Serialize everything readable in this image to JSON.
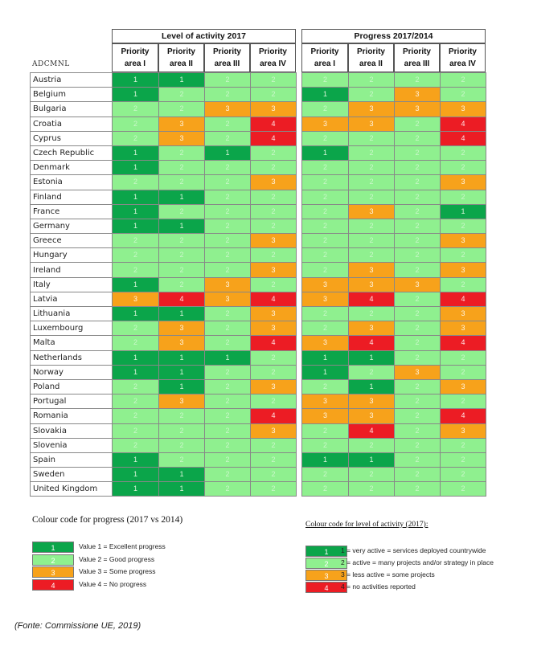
{
  "header": {
    "group_activity": "Level of activity 2017",
    "group_progress": "Progress 2017/2014",
    "country_col": "ADCMNL",
    "columns": [
      [
        "Priority",
        "area I"
      ],
      [
        "Priority",
        "area II"
      ],
      [
        "Priority",
        "area III"
      ],
      [
        "Priority",
        "area IV"
      ]
    ]
  },
  "rows": [
    {
      "country": "Austria",
      "activity": [
        1,
        1,
        2,
        2
      ],
      "progress": [
        2,
        2,
        2,
        2
      ]
    },
    {
      "country": "Belgium",
      "activity": [
        1,
        2,
        2,
        2
      ],
      "progress": [
        1,
        2,
        3,
        2
      ]
    },
    {
      "country": "Bulgaria",
      "activity": [
        2,
        2,
        3,
        3
      ],
      "progress": [
        2,
        3,
        3,
        3
      ]
    },
    {
      "country": "Croatia",
      "activity": [
        2,
        3,
        2,
        4
      ],
      "progress": [
        3,
        3,
        2,
        4
      ]
    },
    {
      "country": "Cyprus",
      "activity": [
        2,
        3,
        2,
        4
      ],
      "progress": [
        2,
        2,
        2,
        4
      ]
    },
    {
      "country": "Czech Republic",
      "activity": [
        1,
        2,
        1,
        2
      ],
      "progress": [
        1,
        2,
        2,
        2
      ]
    },
    {
      "country": "Denmark",
      "activity": [
        1,
        2,
        2,
        2
      ],
      "progress": [
        2,
        2,
        2,
        2
      ]
    },
    {
      "country": "Estonia",
      "activity": [
        2,
        2,
        2,
        3
      ],
      "progress": [
        2,
        2,
        2,
        3
      ]
    },
    {
      "country": "Finland",
      "activity": [
        1,
        1,
        2,
        2
      ],
      "progress": [
        2,
        2,
        2,
        2
      ]
    },
    {
      "country": "France",
      "activity": [
        1,
        2,
        2,
        2
      ],
      "progress": [
        2,
        3,
        2,
        1
      ]
    },
    {
      "country": "Germany",
      "activity": [
        1,
        1,
        2,
        2
      ],
      "progress": [
        2,
        2,
        2,
        2
      ]
    },
    {
      "country": "Greece",
      "activity": [
        2,
        2,
        2,
        3
      ],
      "progress": [
        2,
        2,
        2,
        3
      ]
    },
    {
      "country": "Hungary",
      "activity": [
        2,
        2,
        2,
        2
      ],
      "progress": [
        2,
        2,
        2,
        2
      ]
    },
    {
      "country": "Ireland",
      "activity": [
        2,
        2,
        2,
        3
      ],
      "progress": [
        2,
        3,
        2,
        3
      ]
    },
    {
      "country": "Italy",
      "activity": [
        1,
        2,
        3,
        2
      ],
      "progress": [
        3,
        3,
        3,
        2
      ]
    },
    {
      "country": "Latvia",
      "activity": [
        3,
        4,
        3,
        4
      ],
      "progress": [
        3,
        4,
        2,
        4
      ]
    },
    {
      "country": "Lithuania",
      "activity": [
        1,
        1,
        2,
        3
      ],
      "progress": [
        2,
        2,
        2,
        3
      ]
    },
    {
      "country": "Luxembourg",
      "activity": [
        2,
        3,
        2,
        3
      ],
      "progress": [
        2,
        3,
        2,
        3
      ]
    },
    {
      "country": "Malta",
      "activity": [
        2,
        3,
        2,
        4
      ],
      "progress": [
        3,
        4,
        2,
        4
      ]
    },
    {
      "country": "Netherlands",
      "activity": [
        1,
        1,
        1,
        2
      ],
      "progress": [
        1,
        1,
        2,
        2
      ]
    },
    {
      "country": "Norway",
      "activity": [
        1,
        1,
        2,
        2
      ],
      "progress": [
        1,
        2,
        3,
        2
      ]
    },
    {
      "country": "Poland",
      "activity": [
        2,
        1,
        2,
        3
      ],
      "progress": [
        2,
        1,
        2,
        3
      ]
    },
    {
      "country": "Portugal",
      "activity": [
        2,
        3,
        2,
        2
      ],
      "progress": [
        3,
        3,
        2,
        2
      ]
    },
    {
      "country": "Romania",
      "activity": [
        2,
        2,
        2,
        4
      ],
      "progress": [
        3,
        3,
        2,
        4
      ]
    },
    {
      "country": "Slovakia",
      "activity": [
        2,
        2,
        2,
        3
      ],
      "progress": [
        2,
        4,
        2,
        3
      ]
    },
    {
      "country": "Slovenia",
      "activity": [
        2,
        2,
        2,
        2
      ],
      "progress": [
        2,
        2,
        2,
        2
      ]
    },
    {
      "country": "Spain",
      "activity": [
        1,
        2,
        2,
        2
      ],
      "progress": [
        1,
        1,
        2,
        2
      ]
    },
    {
      "country": "Sweden",
      "activity": [
        1,
        1,
        2,
        2
      ],
      "progress": [
        2,
        2,
        2,
        2
      ]
    },
    {
      "country": "United Kingdom",
      "activity": [
        1,
        1,
        2,
        2
      ],
      "progress": [
        2,
        2,
        2,
        2
      ]
    }
  ],
  "legend_progress": {
    "title": "Colour code for progress (2017 vs 2014)",
    "items": [
      {
        "value": "1",
        "text": "Value 1 = Excellent progress"
      },
      {
        "value": "2",
        "text": "Value 2 = Good progress"
      },
      {
        "value": "3",
        "text": "Value 3 = Some progress"
      },
      {
        "value": "4",
        "text": "Value 4 = No progress"
      }
    ]
  },
  "legend_activity": {
    "title": "Colour code for level of activity (2017):",
    "items": [
      {
        "value": "1",
        "text": "1 = very active = services deployed countrywide"
      },
      {
        "value": "2",
        "text": "2 = active = many projects and/or strategy in place"
      },
      {
        "value": "3",
        "text": "3 = less active = some projects"
      },
      {
        "value": "4",
        "text": "4 = no activities reported"
      }
    ]
  },
  "source": "(Fonte: Commissione UE, 2019)",
  "colors": {
    "v1": "#0ba54a",
    "v2": "#8ff08f",
    "v3": "#f7a21b",
    "v4": "#ec1c24"
  }
}
